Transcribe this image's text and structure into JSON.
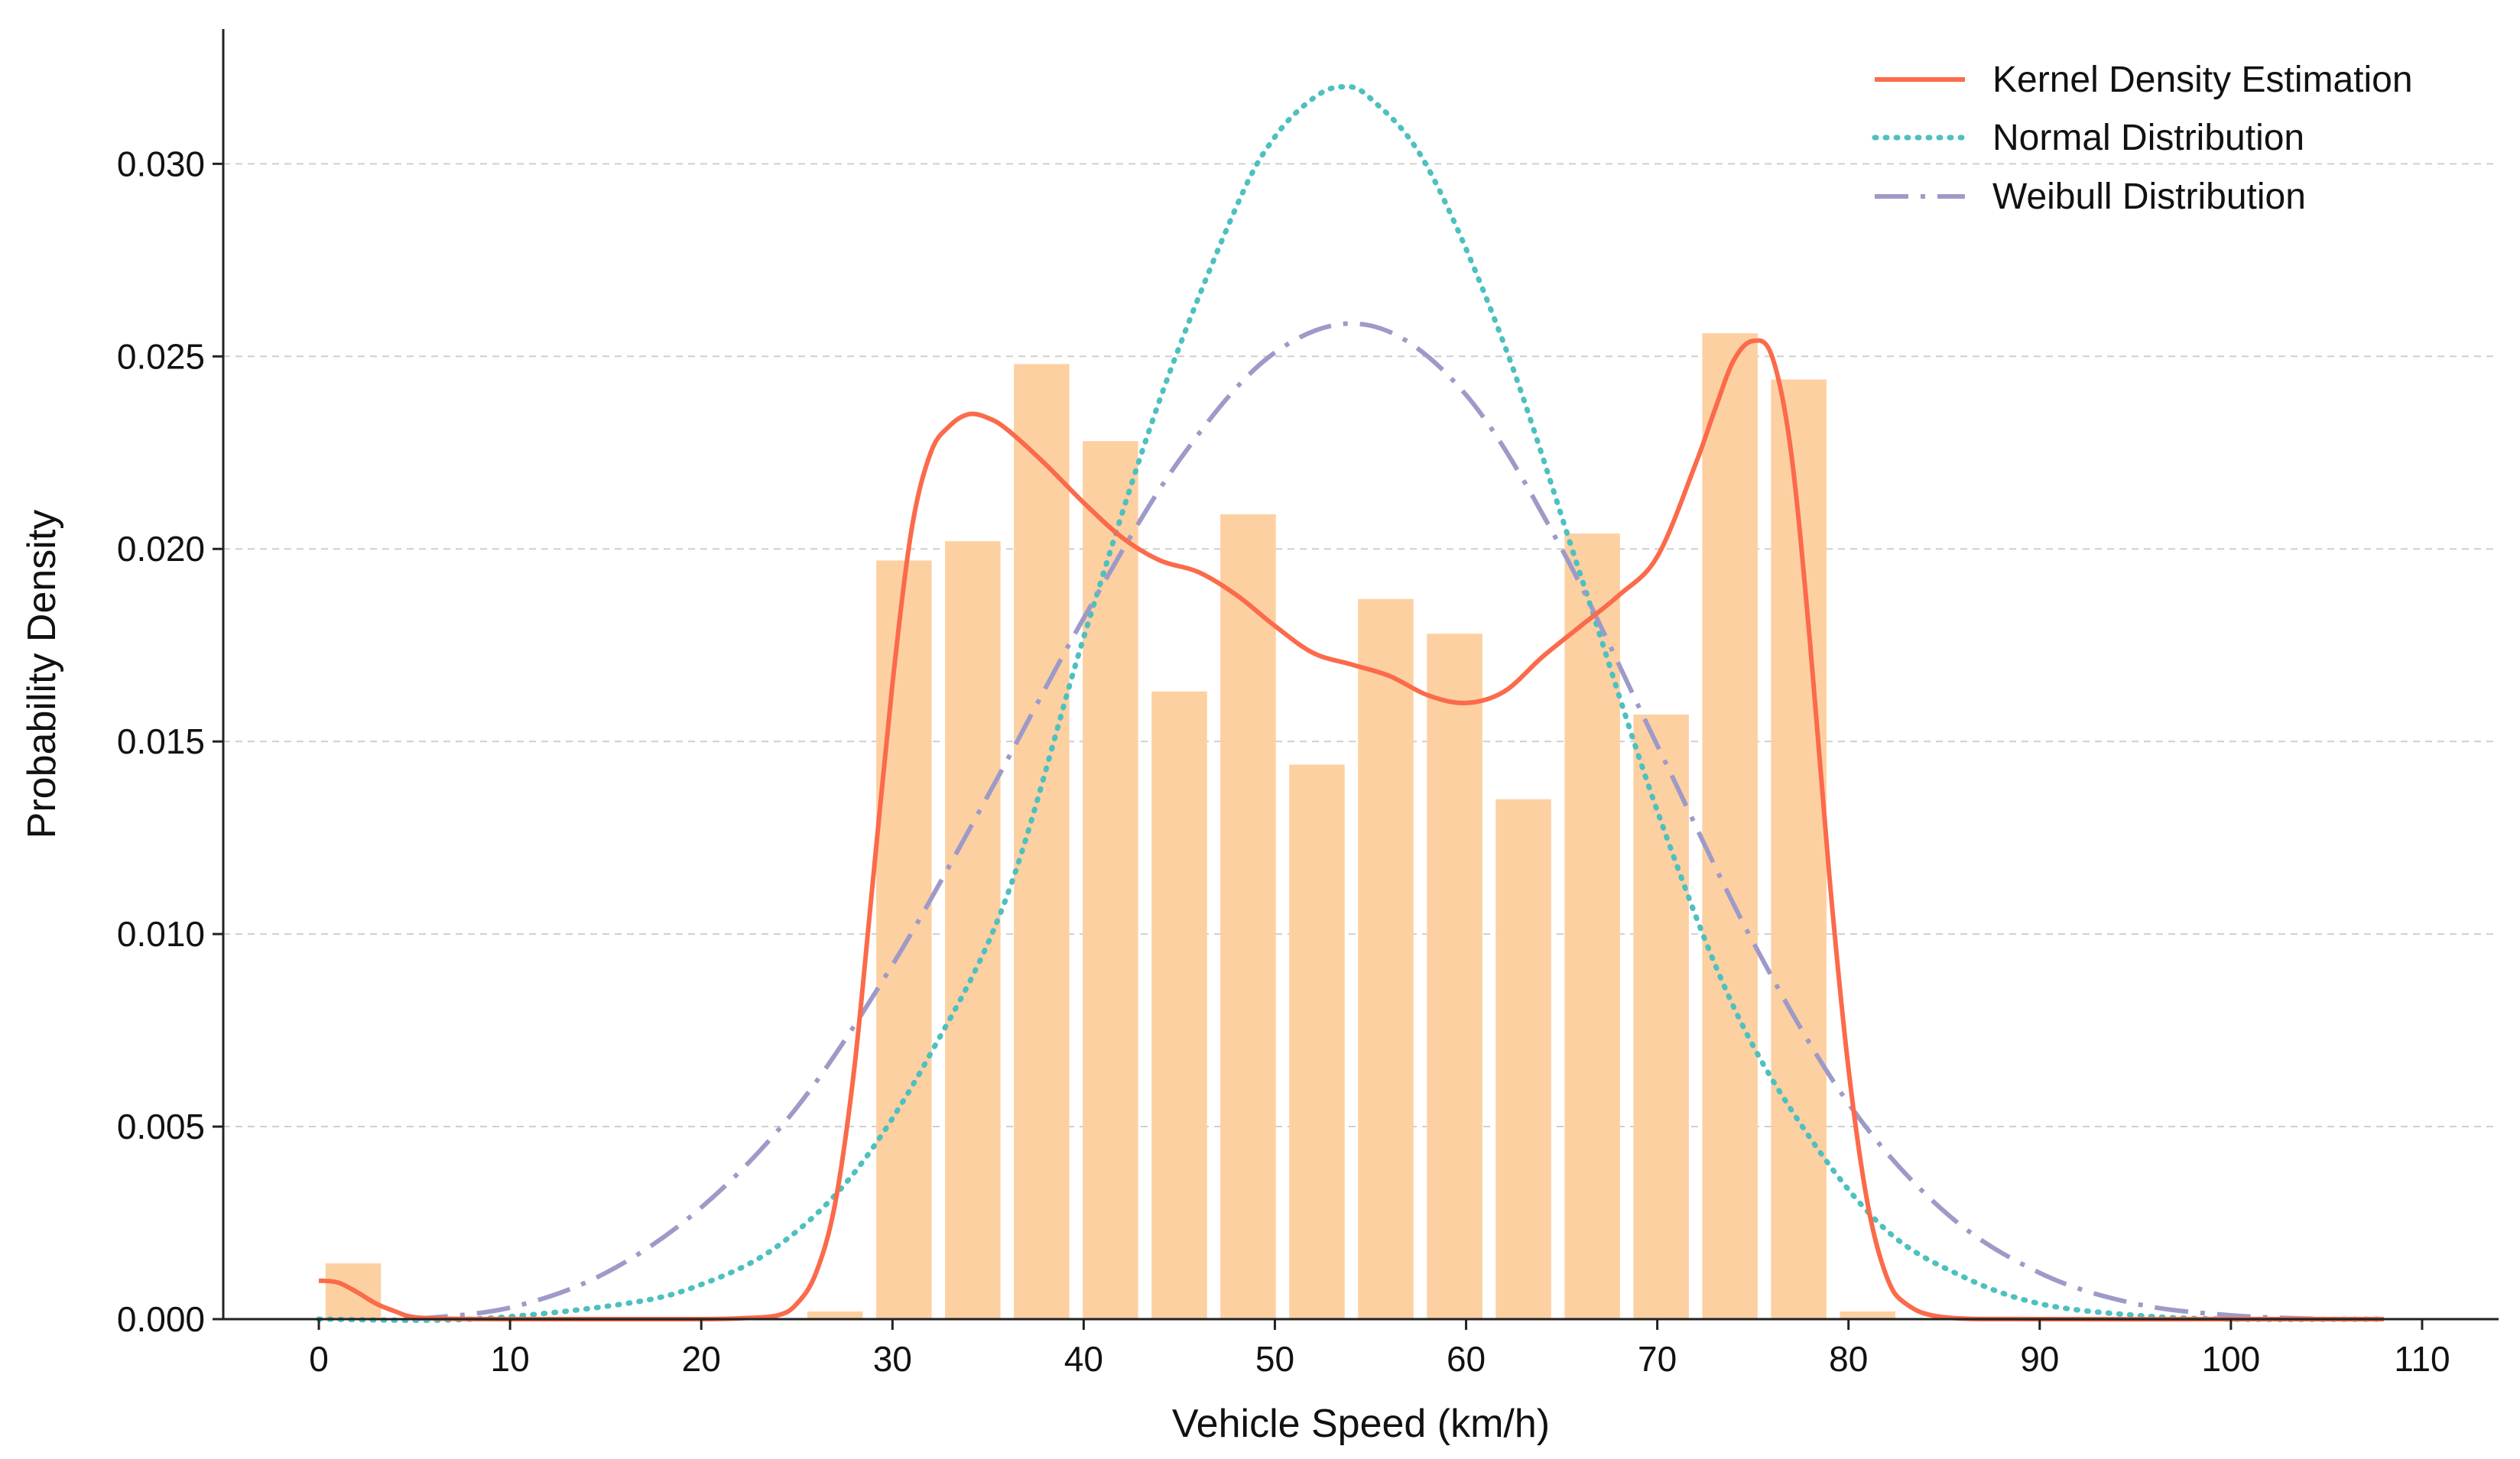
{
  "chart_data": {
    "type": "bar",
    "title": "",
    "xlabel": "Vehicle Speed (km/h)",
    "ylabel": "Probability Density",
    "xlim": [
      -5,
      114
    ],
    "ylim": [
      0,
      0.0335
    ],
    "xticks": [
      0,
      10,
      20,
      30,
      40,
      50,
      60,
      70,
      80,
      90,
      100,
      110
    ],
    "yticks": [
      0,
      0.005,
      0.01,
      0.015,
      0.02,
      0.025,
      0.03
    ],
    "ytick_labels": [
      "0.000",
      "0.005",
      "0.010",
      "0.015",
      "0.020",
      "0.025",
      "0.030"
    ],
    "xtick_labels": [
      "0",
      "10",
      "20",
      "30",
      "40",
      "50",
      "60",
      "70",
      "80",
      "90",
      "100",
      "110"
    ],
    "grid": "y-dashed",
    "legend_position": "top-right",
    "histogram": {
      "name": "Histogram",
      "color": "#fdd0a2",
      "bin_width": 3.6,
      "bar_width": 2.9,
      "centers": [
        1.8,
        27.0,
        30.6,
        34.2,
        37.8,
        41.4,
        45.0,
        48.6,
        52.2,
        55.8,
        59.4,
        63.0,
        66.6,
        70.2,
        73.8,
        77.4,
        81.0
      ],
      "values": [
        0.00145,
        0.0002,
        0.0197,
        0.0202,
        0.0248,
        0.0228,
        0.0163,
        0.0209,
        0.0144,
        0.0187,
        0.0178,
        0.0135,
        0.0204,
        0.0157,
        0.0256,
        0.0244,
        0.0002
      ]
    },
    "series": [
      {
        "name": "Kernel Density Estimation",
        "style": "solid",
        "color": "#fb6a4a",
        "x": [
          0,
          1,
          2,
          3,
          4,
          5,
          7,
          10,
          15,
          20,
          22,
          24,
          25,
          26,
          27,
          28,
          29,
          30,
          31,
          32,
          33,
          34,
          35,
          36,
          38,
          40,
          42,
          44,
          46,
          48,
          50,
          52,
          54,
          56,
          58,
          60,
          62,
          64,
          66,
          68,
          70,
          72,
          73,
          74,
          75,
          76,
          77,
          78,
          79,
          80,
          81,
          82,
          83,
          85,
          90,
          100,
          108
        ],
        "y": [
          0.001,
          0.00095,
          0.0007,
          0.0004,
          0.0002,
          5e-05,
          1e-05,
          0.0,
          0.0,
          0.0,
          2e-05,
          0.0001,
          0.0004,
          0.0012,
          0.003,
          0.0065,
          0.0115,
          0.0165,
          0.0205,
          0.0225,
          0.0232,
          0.0235,
          0.0234,
          0.0231,
          0.0222,
          0.0212,
          0.0203,
          0.0197,
          0.0194,
          0.0188,
          0.018,
          0.0173,
          0.017,
          0.0167,
          0.0162,
          0.016,
          0.0163,
          0.0172,
          0.018,
          0.0188,
          0.0198,
          0.0222,
          0.0236,
          0.0249,
          0.0254,
          0.025,
          0.0225,
          0.0175,
          0.0115,
          0.0065,
          0.003,
          0.0011,
          0.0004,
          5e-05,
          0.0,
          0.0,
          0.0
        ]
      },
      {
        "name": "Normal Distribution",
        "style": "dotted",
        "color": "#4ec0c0",
        "mean": 53.5,
        "sd": 12.45,
        "x": [
          0,
          8,
          16,
          20,
          24,
          28,
          32,
          36,
          40,
          44,
          48,
          50,
          52,
          53.5,
          55,
          58,
          62,
          66,
          70,
          74,
          78,
          82,
          86,
          90,
          95,
          100,
          108
        ],
        "y": [
          0.0,
          0.0,
          0.0004,
          0.0009,
          0.0019,
          0.0038,
          0.0069,
          0.011,
          0.0177,
          0.0239,
          0.0289,
          0.0307,
          0.0317,
          0.032,
          0.0317,
          0.0299,
          0.0253,
          0.0193,
          0.0132,
          0.0081,
          0.0047,
          0.0023,
          0.0011,
          0.0004,
          0.0001,
          0.0,
          0.0
        ]
      },
      {
        "name": "Weibull Distribution",
        "style": "dashdot",
        "color": "#9e9ac8",
        "x": [
          5,
          10,
          15,
          20,
          25,
          30,
          35,
          40,
          45,
          50,
          55,
          60,
          65,
          70,
          75,
          80,
          85,
          90,
          95,
          100,
          105
        ],
        "y": [
          0.0,
          0.0003,
          0.0012,
          0.0029,
          0.0055,
          0.0092,
          0.0136,
          0.0182,
          0.0223,
          0.0251,
          0.0258,
          0.024,
          0.02,
          0.0149,
          0.0098,
          0.0056,
          0.0028,
          0.0012,
          0.0004,
          0.0001,
          0.0
        ]
      }
    ]
  }
}
